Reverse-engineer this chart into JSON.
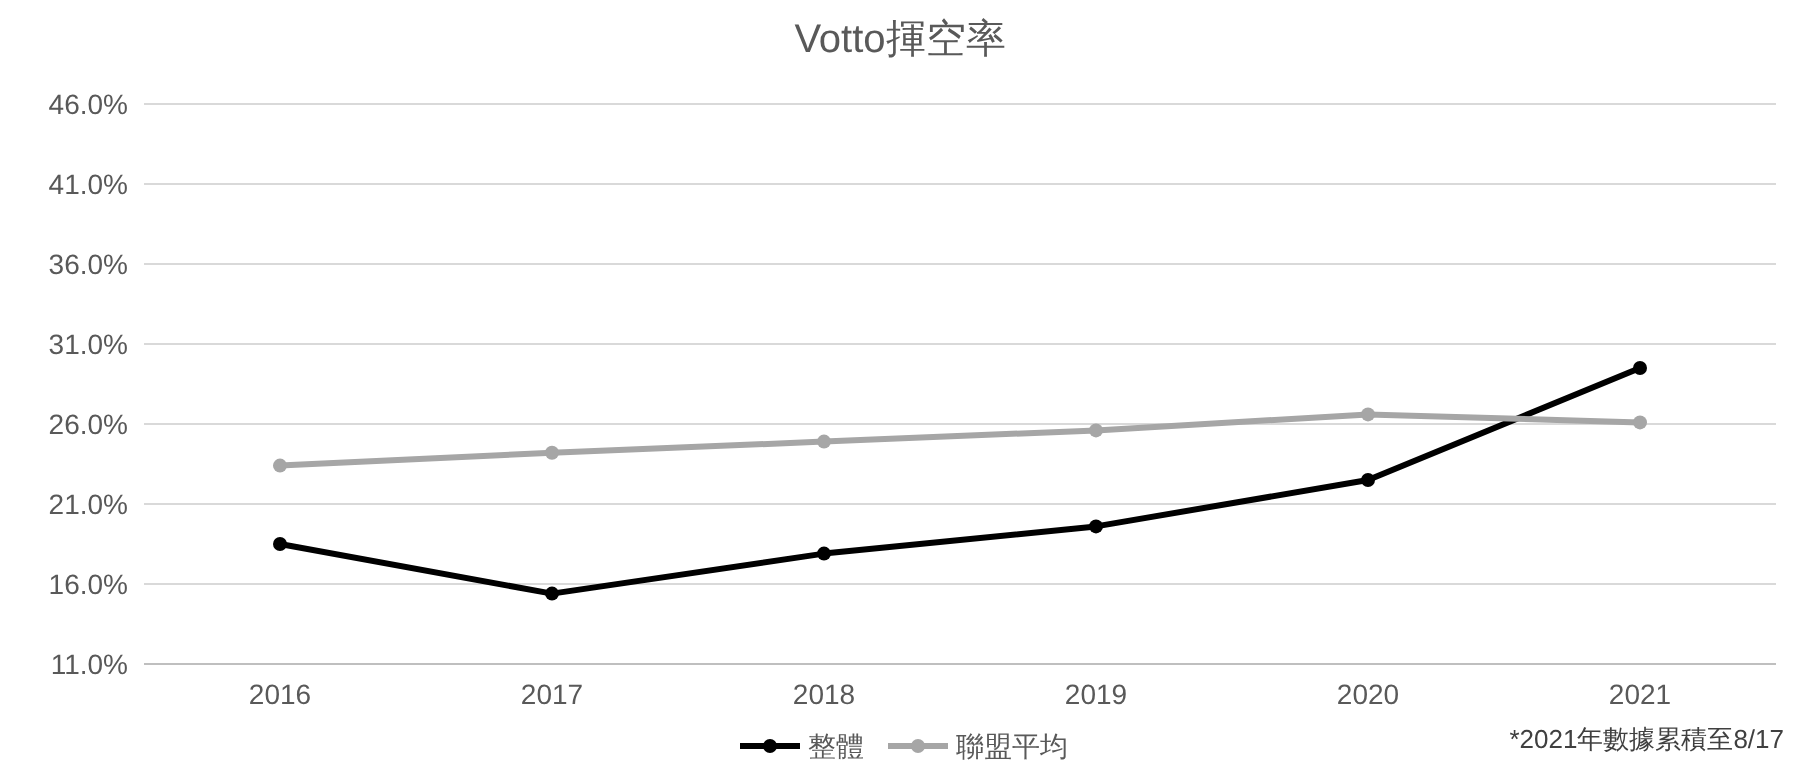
{
  "chart_data": {
    "type": "line",
    "title": "Votto揮空率",
    "categories": [
      "2016",
      "2017",
      "2018",
      "2019",
      "2020",
      "2021"
    ],
    "series": [
      {
        "name": "整體",
        "color": "#000000",
        "values": [
          18.5,
          15.4,
          17.9,
          19.6,
          22.5,
          29.5
        ]
      },
      {
        "name": "聯盟平均",
        "color": "#a6a6a6",
        "values": [
          23.4,
          24.2,
          24.9,
          25.6,
          26.6,
          26.1
        ]
      }
    ],
    "ylim": [
      11,
      46
    ],
    "yticks": [
      {
        "value": 11,
        "label": "11.0%"
      },
      {
        "value": 16,
        "label": "16.0%"
      },
      {
        "value": 21,
        "label": "21.0%"
      },
      {
        "value": 26,
        "label": "26.0%"
      },
      {
        "value": 31,
        "label": "31.0%"
      },
      {
        "value": 36,
        "label": "36.0%"
      },
      {
        "value": 41,
        "label": "41.0%"
      },
      {
        "value": 46,
        "label": "46.0%"
      }
    ],
    "grid": "y",
    "legend": "bottom",
    "marker": "circle",
    "annotations": [
      "*2021年數據累積至8/17"
    ]
  }
}
